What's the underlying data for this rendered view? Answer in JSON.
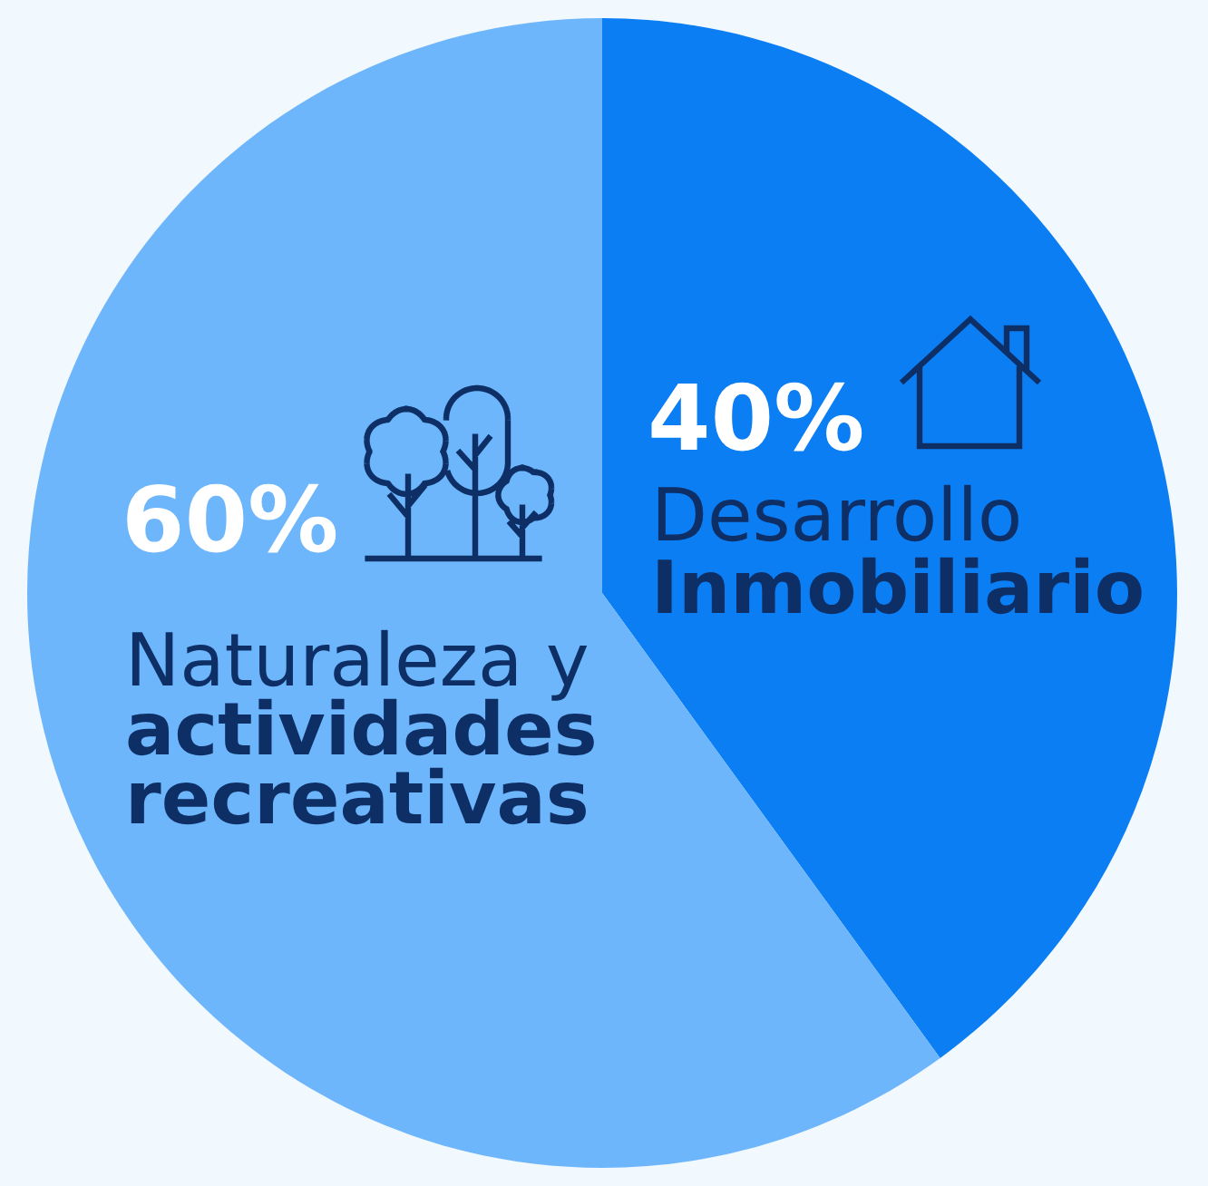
{
  "chart_data": {
    "type": "pie",
    "categories": [
      "Desarrollo\nInmobiliario",
      "Naturaleza y\nactividades\nrecreativas"
    ],
    "values": [
      40,
      60
    ],
    "colors": [
      "#0b7ef4",
      "#6eb6fb"
    ],
    "value_labels": [
      "40%",
      "60%"
    ]
  }
}
